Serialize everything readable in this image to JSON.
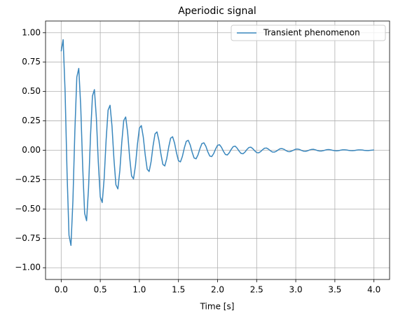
{
  "chart_data": {
    "type": "line",
    "title": "Aperiodic signal",
    "x_label": "Time [s]",
    "x": [
      0,
      0.025,
      0.05,
      0.075,
      0.1,
      0.125,
      0.15,
      0.175,
      0.2,
      0.225,
      0.25,
      0.275,
      0.3,
      0.325,
      0.35,
      0.375,
      0.4,
      0.425,
      0.45,
      0.475,
      0.5,
      0.525,
      0.55,
      0.575,
      0.6,
      0.625,
      0.65,
      0.675,
      0.7,
      0.725,
      0.75,
      0.775,
      0.8,
      0.825,
      0.85,
      0.875,
      0.9,
      0.925,
      0.95,
      0.975,
      1.0,
      1.025,
      1.05,
      1.075,
      1.1,
      1.125,
      1.15,
      1.175,
      1.2,
      1.225,
      1.25,
      1.275,
      1.3,
      1.325,
      1.35,
      1.375,
      1.4,
      1.425,
      1.45,
      1.475,
      1.5,
      1.525,
      1.55,
      1.575,
      1.6,
      1.625,
      1.65,
      1.675,
      1.7,
      1.725,
      1.75,
      1.775,
      1.8,
      1.825,
      1.85,
      1.875,
      1.9,
      1.925,
      1.95,
      1.975,
      2.0,
      2.025,
      2.05,
      2.075,
      2.1,
      2.125,
      2.15,
      2.175,
      2.2,
      2.225,
      2.25,
      2.275,
      2.3,
      2.325,
      2.35,
      2.375,
      2.4,
      2.425,
      2.45,
      2.475,
      2.5,
      2.525,
      2.55,
      2.575,
      2.6,
      2.625,
      2.65,
      2.675,
      2.7,
      2.725,
      2.75,
      2.775,
      2.8,
      2.825,
      2.85,
      2.875,
      2.9,
      2.925,
      2.95,
      2.975,
      3.0,
      3.025,
      3.05,
      3.075,
      3.1,
      3.125,
      3.15,
      3.175,
      3.2,
      3.225,
      3.25,
      3.275,
      3.3,
      3.325,
      3.35,
      3.375,
      3.4,
      3.425,
      3.45,
      3.475,
      3.5,
      3.525,
      3.55,
      3.575,
      3.6,
      3.625,
      3.65,
      3.675,
      3.7,
      3.725,
      3.75,
      3.775,
      3.8,
      3.825,
      3.85,
      3.875,
      3.9,
      3.925,
      3.95,
      3.975,
      4.0
    ],
    "series": [
      {
        "name": "Transient phenomenon",
        "color": "#3a87bd",
        "values": [
          0.842,
          0.941,
          0.501,
          -0.19,
          -0.724,
          -0.81,
          -0.431,
          0.164,
          0.623,
          0.697,
          0.371,
          -0.141,
          -0.537,
          -0.6,
          -0.32,
          0.121,
          0.462,
          0.516,
          0.275,
          -0.104,
          -0.397,
          -0.445,
          -0.237,
          0.09,
          0.342,
          0.383,
          0.204,
          -0.077,
          -0.294,
          -0.329,
          -0.175,
          0.067,
          0.253,
          0.283,
          0.151,
          -0.057,
          -0.218,
          -0.244,
          -0.13,
          0.049,
          0.188,
          0.21,
          0.112,
          -0.042,
          -0.162,
          -0.181,
          -0.096,
          0.037,
          0.139,
          0.156,
          0.083,
          -0.031,
          -0.12,
          -0.134,
          -0.071,
          0.027,
          0.103,
          0.115,
          0.061,
          -0.023,
          -0.089,
          -0.099,
          -0.053,
          0.02,
          0.076,
          0.085,
          0.045,
          -0.017,
          -0.066,
          -0.073,
          -0.039,
          0.015,
          0.057,
          0.063,
          0.034,
          -0.013,
          -0.049,
          -0.054,
          -0.029,
          0.011,
          0.042,
          0.047,
          0.025,
          -0.009,
          -0.036,
          -0.04,
          -0.021,
          0.008,
          0.031,
          0.035,
          0.018,
          -0.007,
          -0.027,
          -0.03,
          -0.016,
          0.006,
          0.023,
          0.026,
          0.014,
          -0.005,
          -0.02,
          -0.022,
          -0.012,
          0.004,
          0.017,
          0.019,
          0.01,
          -0.004,
          -0.015,
          -0.016,
          -0.009,
          0.003,
          0.013,
          0.014,
          0.008,
          -0.003,
          -0.011,
          -0.012,
          -0.006,
          0.002,
          0.009,
          0.01,
          0.006,
          -0.002,
          -0.008,
          -0.009,
          -0.005,
          0.002,
          0.007,
          0.008,
          0.004,
          -0.002,
          -0.006,
          -0.007,
          -0.004,
          0.001,
          0.005,
          0.006,
          0.003,
          -0.001,
          -0.004,
          -0.005,
          -0.003,
          0.001,
          0.004,
          0.004,
          0.002,
          -0.001,
          -0.003,
          -0.004,
          -0.002,
          0.001,
          0.003,
          0.003,
          0.002,
          -0.001,
          -0.002,
          -0.003,
          -0.001,
          0.001,
          0.002
        ]
      }
    ],
    "xlim": [
      -0.2,
      4.2
    ],
    "ylim": [
      -1.1,
      1.1
    ],
    "xticks": [
      {
        "value": 0,
        "label": "0.0"
      },
      {
        "value": 0.5,
        "label": "0.5"
      },
      {
        "value": 1,
        "label": "1.0"
      },
      {
        "value": 1.5,
        "label": "1.5"
      },
      {
        "value": 2,
        "label": "2.0"
      },
      {
        "value": 2.5,
        "label": "2.5"
      },
      {
        "value": 3,
        "label": "3.0"
      },
      {
        "value": 3.5,
        "label": "3.5"
      },
      {
        "value": 4,
        "label": "4.0"
      }
    ],
    "yticks": [
      {
        "value": -1,
        "label": "−1.00"
      },
      {
        "value": -0.75,
        "label": "−0.75"
      },
      {
        "value": -0.5,
        "label": "−0.50"
      },
      {
        "value": -0.25,
        "label": "−0.25"
      },
      {
        "value": 0,
        "label": "0.00"
      },
      {
        "value": 0.25,
        "label": "0.25"
      },
      {
        "value": 0.5,
        "label": "0.50"
      },
      {
        "value": 0.75,
        "label": "0.75"
      },
      {
        "value": 1,
        "label": "1.00"
      }
    ],
    "grid": true,
    "legend": "upper right"
  }
}
